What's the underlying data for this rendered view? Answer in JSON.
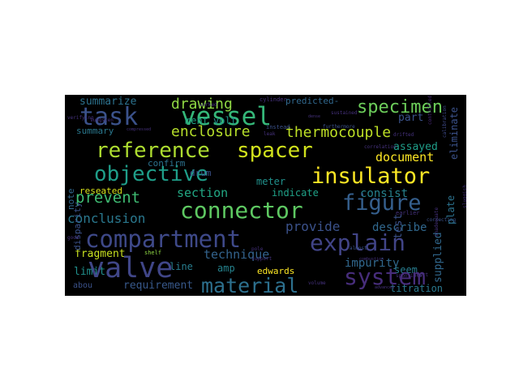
{
  "wordcloud": {
    "words": [
      {
        "text": "task",
        "color": "#3b528b"
      },
      {
        "text": "vessel",
        "color": "#35b779"
      },
      {
        "text": "specimen",
        "color": "#6ccd5a"
      },
      {
        "text": "summarize",
        "color": "#2c728e"
      },
      {
        "text": "drawing",
        "color": "#8fd744"
      },
      {
        "text": "predicted-",
        "color": "#31688e"
      },
      {
        "text": "enclosure",
        "color": "#b5de2b"
      },
      {
        "text": "thermocouple",
        "color": "#bddf26"
      },
      {
        "text": "volt",
        "color": "#21918c"
      },
      {
        "text": "ment",
        "color": "#20a486"
      },
      {
        "text": "part",
        "color": "#3b528b"
      },
      {
        "text": "summary",
        "color": "#2a788e"
      },
      {
        "text": "reference",
        "color": "#addc30"
      },
      {
        "text": "spacer",
        "color": "#d0e11c"
      },
      {
        "text": "document",
        "color": "#fde725"
      },
      {
        "text": "assayed",
        "color": "#1f9e89"
      },
      {
        "text": "objective",
        "color": "#1f9e89"
      },
      {
        "text": "insulator",
        "color": "#fde725"
      },
      {
        "text": "confirm",
        "color": "#2c728e"
      },
      {
        "text": "drum",
        "color": "#3b528b"
      },
      {
        "text": "meter",
        "color": "#21918c"
      },
      {
        "text": "section",
        "color": "#22a884"
      },
      {
        "text": "indicate",
        "color": "#1fa187"
      },
      {
        "text": "consist",
        "color": "#26828e"
      },
      {
        "text": "figure",
        "color": "#355f8d"
      },
      {
        "text": "prevent",
        "color": "#3fbc73"
      },
      {
        "text": "reseated",
        "color": "#d8e219"
      },
      {
        "text": "connector",
        "color": "#5ec962"
      },
      {
        "text": "conclusion",
        "color": "#2a788e"
      },
      {
        "text": "provide",
        "color": "#3b528b"
      },
      {
        "text": "describe",
        "color": "#31688e"
      },
      {
        "text": "compartment",
        "color": "#3e4989"
      },
      {
        "text": "explain",
        "color": "#414487"
      },
      {
        "text": "fragment",
        "color": "#c8e020"
      },
      {
        "text": "technique",
        "color": "#33638d"
      },
      {
        "text": "line",
        "color": "#287d8e"
      },
      {
        "text": "amp",
        "color": "#25838e"
      },
      {
        "text": "limit",
        "color": "#21908d"
      },
      {
        "text": "impurity",
        "color": "#31688e"
      },
      {
        "text": "seem",
        "color": "#287c8e"
      },
      {
        "text": "valve",
        "color": "#404688"
      },
      {
        "text": "material",
        "color": "#2d708e"
      },
      {
        "text": "edwards",
        "color": "#fde725"
      },
      {
        "text": "system",
        "color": "#472d7b"
      },
      {
        "text": "requirement",
        "color": "#38598c"
      },
      {
        "text": "titration",
        "color": "#2a788e"
      },
      {
        "text": "test",
        "color": "#3b528b"
      },
      {
        "text": "supplied",
        "color": "#31688e"
      },
      {
        "text": "plate",
        "color": "#2c728e"
      },
      {
        "text": "eliminate",
        "color": "#3b528b"
      },
      {
        "text": "note",
        "color": "#31688e"
      },
      {
        "text": "disparity",
        "color": "#3b528b"
      },
      {
        "text": "abou",
        "color": "#3b528b"
      },
      {
        "text": "cylinder",
        "color": "#46327e"
      },
      {
        "text": "instead",
        "color": "#3b528b"
      },
      {
        "text": "furthermore",
        "color": "#3b528b"
      },
      {
        "text": "sustained",
        "color": "#46327e"
      },
      {
        "text": "drifted",
        "color": "#46327e"
      },
      {
        "text": "controlled",
        "color": "#482878"
      },
      {
        "text": "calibration",
        "color": "#3e4a89"
      },
      {
        "text": "correlation",
        "color": "#46327e"
      },
      {
        "text": "earlier",
        "color": "#46327e"
      },
      {
        "text": "correcting",
        "color": "#3b528b"
      },
      {
        "text": "almost",
        "color": "#3b528b"
      },
      {
        "text": "pole",
        "color": "#46327e"
      },
      {
        "text": "support",
        "color": "#46327e"
      },
      {
        "text": "combustion",
        "color": "#46327e"
      },
      {
        "text": "sponsible",
        "color": "#46327e"
      },
      {
        "text": "shelf",
        "color": "#8fd744"
      },
      {
        "text": "good",
        "color": "#46327e"
      },
      {
        "text": "inadequate",
        "color": "#46327e"
      },
      {
        "text": "sluggish",
        "color": "#46327e"
      },
      {
        "text": "volume",
        "color": "#46327e"
      },
      {
        "text": "worked",
        "color": "#46327e"
      },
      {
        "text": "verifying",
        "color": "#46327e"
      },
      {
        "text": "advanced",
        "color": "#46327e"
      },
      {
        "text": "inert",
        "color": "#46327e"
      },
      {
        "text": "tungsten",
        "color": "#46327e"
      },
      {
        "text": "compressed",
        "color": "#46327e"
      },
      {
        "text": "leak",
        "color": "#46327e"
      },
      {
        "text": "dense",
        "color": "#46327e"
      }
    ]
  }
}
